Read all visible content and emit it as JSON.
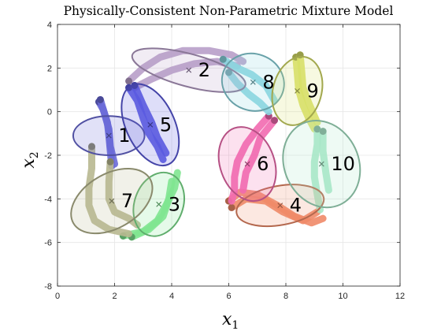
{
  "chart_data": {
    "type": "scatter",
    "title": "Physically-Consistent Non-Parametric Mixture Model",
    "xlabel": "x",
    "xlabel_sub": "1",
    "ylabel": "x",
    "ylabel_sub": "2",
    "xlim": [
      0,
      12
    ],
    "ylim": [
      -8,
      4
    ],
    "xticks": [
      0,
      2,
      4,
      6,
      8,
      10,
      12
    ],
    "yticks": [
      -8,
      -6,
      -4,
      -2,
      0,
      2,
      4
    ],
    "grid": true,
    "components": [
      {
        "label": "1",
        "color": "#6a6ad8",
        "center": [
          1.8,
          -1.1
        ],
        "rx": 1.25,
        "ry": 0.9,
        "angle": 0,
        "trajectories": [
          [
            [
              1.45,
              0.45
            ],
            [
              1.6,
              0.1
            ],
            [
              1.75,
              -0.5
            ],
            [
              1.8,
              -1.1
            ],
            [
              1.85,
              -1.8
            ],
            [
              1.9,
              -2.5
            ]
          ],
          [
            [
              1.5,
              0.55
            ],
            [
              1.65,
              -0.1
            ],
            [
              1.8,
              -0.8
            ],
            [
              1.85,
              -1.6
            ],
            [
              2.0,
              -2.4
            ]
          ]
        ]
      },
      {
        "label": "2",
        "color": "#b89fc9",
        "center": [
          4.6,
          1.9
        ],
        "rx": 2.05,
        "ry": 0.75,
        "angle": 15,
        "trajectories": [
          [
            [
              2.5,
              1.4
            ],
            [
              3.0,
              2.0
            ],
            [
              3.6,
              2.5
            ],
            [
              4.4,
              2.8
            ],
            [
              5.3,
              2.8
            ],
            [
              6.1,
              2.6
            ],
            [
              6.5,
              2.3
            ]
          ],
          [
            [
              2.7,
              1.1
            ],
            [
              3.3,
              1.5
            ],
            [
              4.0,
              1.9
            ],
            [
              4.8,
              2.2
            ],
            [
              5.6,
              2.3
            ],
            [
              6.3,
              2.1
            ]
          ]
        ]
      },
      {
        "label": "3",
        "color": "#7fe690",
        "center": [
          3.55,
          -4.25
        ],
        "rx": 0.85,
        "ry": 1.5,
        "angle": 20,
        "trajectories": [
          [
            [
              2.3,
              -5.7
            ],
            [
              3.0,
              -5.5
            ],
            [
              3.5,
              -5.0
            ],
            [
              3.8,
              -4.3
            ],
            [
              4.1,
              -3.5
            ],
            [
              4.2,
              -2.8
            ]
          ],
          [
            [
              2.6,
              -5.75
            ],
            [
              3.2,
              -5.4
            ],
            [
              3.7,
              -4.8
            ],
            [
              3.9,
              -4.0
            ],
            [
              4.0,
              -3.2
            ]
          ]
        ]
      },
      {
        "label": "4",
        "color": "#f08a68",
        "center": [
          7.8,
          -4.3
        ],
        "rx": 1.55,
        "ry": 0.9,
        "angle": -10,
        "trajectories": [
          [
            [
              6.0,
              -4.1
            ],
            [
              6.4,
              -3.7
            ],
            [
              7.0,
              -3.8
            ],
            [
              7.7,
              -4.3
            ],
            [
              8.3,
              -4.8
            ],
            [
              8.9,
              -5.1
            ],
            [
              9.3,
              -4.9
            ]
          ],
          [
            [
              6.1,
              -4.4
            ],
            [
              6.6,
              -4.0
            ],
            [
              7.3,
              -4.1
            ],
            [
              7.9,
              -4.6
            ],
            [
              8.6,
              -5.0
            ],
            [
              9.1,
              -4.6
            ]
          ]
        ]
      },
      {
        "label": "5",
        "color": "#5b5be0",
        "center": [
          3.25,
          -0.6
        ],
        "rx": 0.85,
        "ry": 2.0,
        "angle": -25,
        "trajectories": [
          [
            [
              2.5,
              1.1
            ],
            [
              2.8,
              0.5
            ],
            [
              3.0,
              -0.3
            ],
            [
              3.2,
              -1.0
            ],
            [
              3.5,
              -1.6
            ],
            [
              3.7,
              -2.2
            ]
          ],
          [
            [
              2.7,
              1.2
            ],
            [
              3.0,
              0.3
            ],
            [
              3.3,
              -0.5
            ],
            [
              3.5,
              -1.2
            ],
            [
              3.8,
              -1.9
            ]
          ]
        ]
      },
      {
        "label": "6",
        "color": "#f26ab0",
        "center": [
          6.65,
          -2.4
        ],
        "rx": 0.95,
        "ry": 1.75,
        "angle": -20,
        "trajectories": [
          [
            [
              7.4,
              -0.2
            ],
            [
              7.0,
              -0.8
            ],
            [
              6.6,
              -1.5
            ],
            [
              6.3,
              -2.3
            ],
            [
              6.2,
              -3.0
            ],
            [
              6.2,
              -3.6
            ],
            [
              6.1,
              -4.1
            ]
          ],
          [
            [
              7.6,
              -0.4
            ],
            [
              7.1,
              -1.2
            ],
            [
              6.9,
              -2.0
            ],
            [
              6.6,
              -2.8
            ],
            [
              6.5,
              -3.6
            ]
          ]
        ]
      },
      {
        "label": "8",
        "color": "#8ad6e0",
        "center": [
          6.85,
          1.35
        ],
        "rx": 1.1,
        "ry": 1.3,
        "angle": 20,
        "trajectories": [
          [
            [
              6.0,
              1.8
            ],
            [
              6.3,
              1.3
            ],
            [
              6.7,
              0.8
            ],
            [
              7.1,
              0.4
            ],
            [
              7.4,
              0.0
            ]
          ],
          [
            [
              5.8,
              2.4
            ],
            [
              6.3,
              2.0
            ],
            [
              6.8,
              1.7
            ],
            [
              7.3,
              1.2
            ],
            [
              7.6,
              0.5
            ]
          ]
        ]
      },
      {
        "label": "9",
        "color": "#d8e068",
        "center": [
          8.4,
          0.95
        ],
        "rx": 0.85,
        "ry": 1.6,
        "angle": 15,
        "trajectories": [
          [
            [
              8.35,
              2.5
            ],
            [
              8.4,
              1.8
            ],
            [
              8.45,
              1.0
            ],
            [
              8.6,
              0.3
            ],
            [
              8.8,
              -0.3
            ],
            [
              9.0,
              -0.8
            ]
          ],
          [
            [
              8.5,
              2.6
            ],
            [
              8.55,
              1.9
            ],
            [
              8.6,
              1.1
            ],
            [
              8.8,
              0.4
            ],
            [
              9.1,
              -0.5
            ]
          ]
        ]
      },
      {
        "label": "10",
        "color": "#a8e8c8",
        "center": [
          9.25,
          -2.4
        ],
        "rx": 1.3,
        "ry": 2.05,
        "angle": -25,
        "trajectories": [
          [
            [
              9.1,
              -0.8
            ],
            [
              9.1,
              -1.5
            ],
            [
              9.0,
              -2.3
            ],
            [
              9.0,
              -3.0
            ],
            [
              9.1,
              -3.8
            ],
            [
              9.2,
              -4.5
            ]
          ],
          [
            [
              9.3,
              -0.9
            ],
            [
              9.3,
              -1.8
            ],
            [
              9.4,
              -2.8
            ],
            [
              9.5,
              -3.6
            ]
          ]
        ]
      },
      {
        "label": "7",
        "color": "#b8b890",
        "center": [
          1.9,
          -4.1
        ],
        "rx": 1.55,
        "ry": 1.25,
        "angle": -30,
        "trajectories": [
          [
            [
              1.2,
              -1.6
            ],
            [
              1.2,
              -2.6
            ],
            [
              1.1,
              -3.5
            ],
            [
              1.1,
              -4.3
            ],
            [
              1.3,
              -5.0
            ],
            [
              1.8,
              -5.4
            ],
            [
              2.5,
              -5.6
            ]
          ],
          [
            [
              1.85,
              -2.3
            ],
            [
              1.8,
              -3.2
            ],
            [
              1.8,
              -4.0
            ],
            [
              2.0,
              -4.6
            ],
            [
              2.5,
              -4.9
            ],
            [
              2.8,
              -5.2
            ]
          ]
        ]
      }
    ]
  }
}
